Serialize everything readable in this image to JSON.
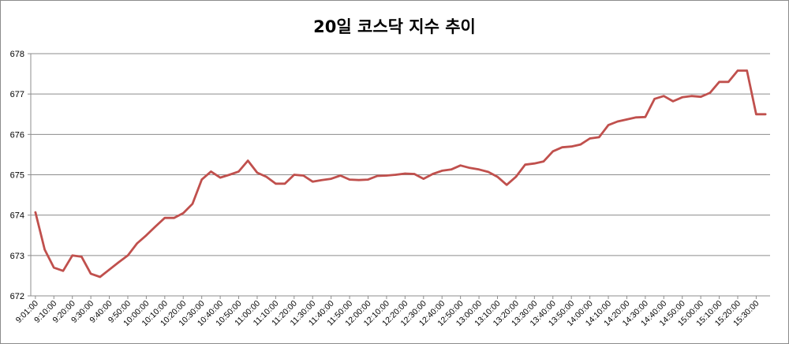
{
  "chart_data": {
    "type": "line",
    "title": "20일 코스닥 지수 추이",
    "xlabel": "",
    "ylabel": "",
    "ylim": [
      672,
      678
    ],
    "yticks": [
      672,
      673,
      674,
      675,
      676,
      677,
      678
    ],
    "grid": true,
    "legend": "none",
    "line_color": "#c0504d",
    "x_tick_labels": [
      "9:01:00",
      "9:10:00",
      "9:20:00",
      "9:30:00",
      "9:40:00",
      "9:50:00",
      "10:00:00",
      "10:10:00",
      "10:20:00",
      "10:30:00",
      "10:40:00",
      "10:50:00",
      "11:00:00",
      "11:10:00",
      "11:20:00",
      "11:30:00",
      "11:40:00",
      "11:50:00",
      "12:00:00",
      "12:10:00",
      "12:20:00",
      "12:30:00",
      "12:40:00",
      "12:50:00",
      "13:00:00",
      "13:10:00",
      "13:20:00",
      "13:30:00",
      "13:40:00",
      "13:50:00",
      "14:00:00",
      "14:10:00",
      "14:20:00",
      "14:30:00",
      "14:40:00",
      "14:50:00",
      "15:00:00",
      "15:10:00",
      "15:20:00",
      "15:30:00"
    ],
    "series": [
      {
        "name": "",
        "values": [
          674.07,
          673.15,
          672.7,
          672.62,
          673.0,
          672.97,
          672.55,
          672.47,
          672.65,
          672.83,
          673.0,
          673.3,
          673.5,
          673.72,
          673.93,
          673.93,
          674.05,
          674.28,
          674.88,
          675.08,
          674.93,
          675.0,
          675.08,
          675.35,
          675.05,
          674.95,
          674.78,
          674.78,
          675.0,
          674.98,
          674.83,
          674.87,
          674.9,
          674.98,
          674.88,
          674.87,
          674.88,
          674.97,
          674.98,
          675.0,
          675.03,
          675.02,
          674.9,
          675.02,
          675.1,
          675.13,
          675.23,
          675.17,
          675.13,
          675.07,
          674.95,
          674.75,
          674.95,
          675.25,
          675.28,
          675.33,
          675.58,
          675.68,
          675.7,
          675.75,
          675.9,
          675.93,
          676.23,
          676.32,
          676.37,
          676.42,
          676.43,
          676.88,
          676.95,
          676.82,
          676.92,
          676.95,
          676.93,
          677.03,
          677.3,
          677.3,
          677.58,
          677.58,
          676.5,
          676.5
        ]
      }
    ]
  }
}
